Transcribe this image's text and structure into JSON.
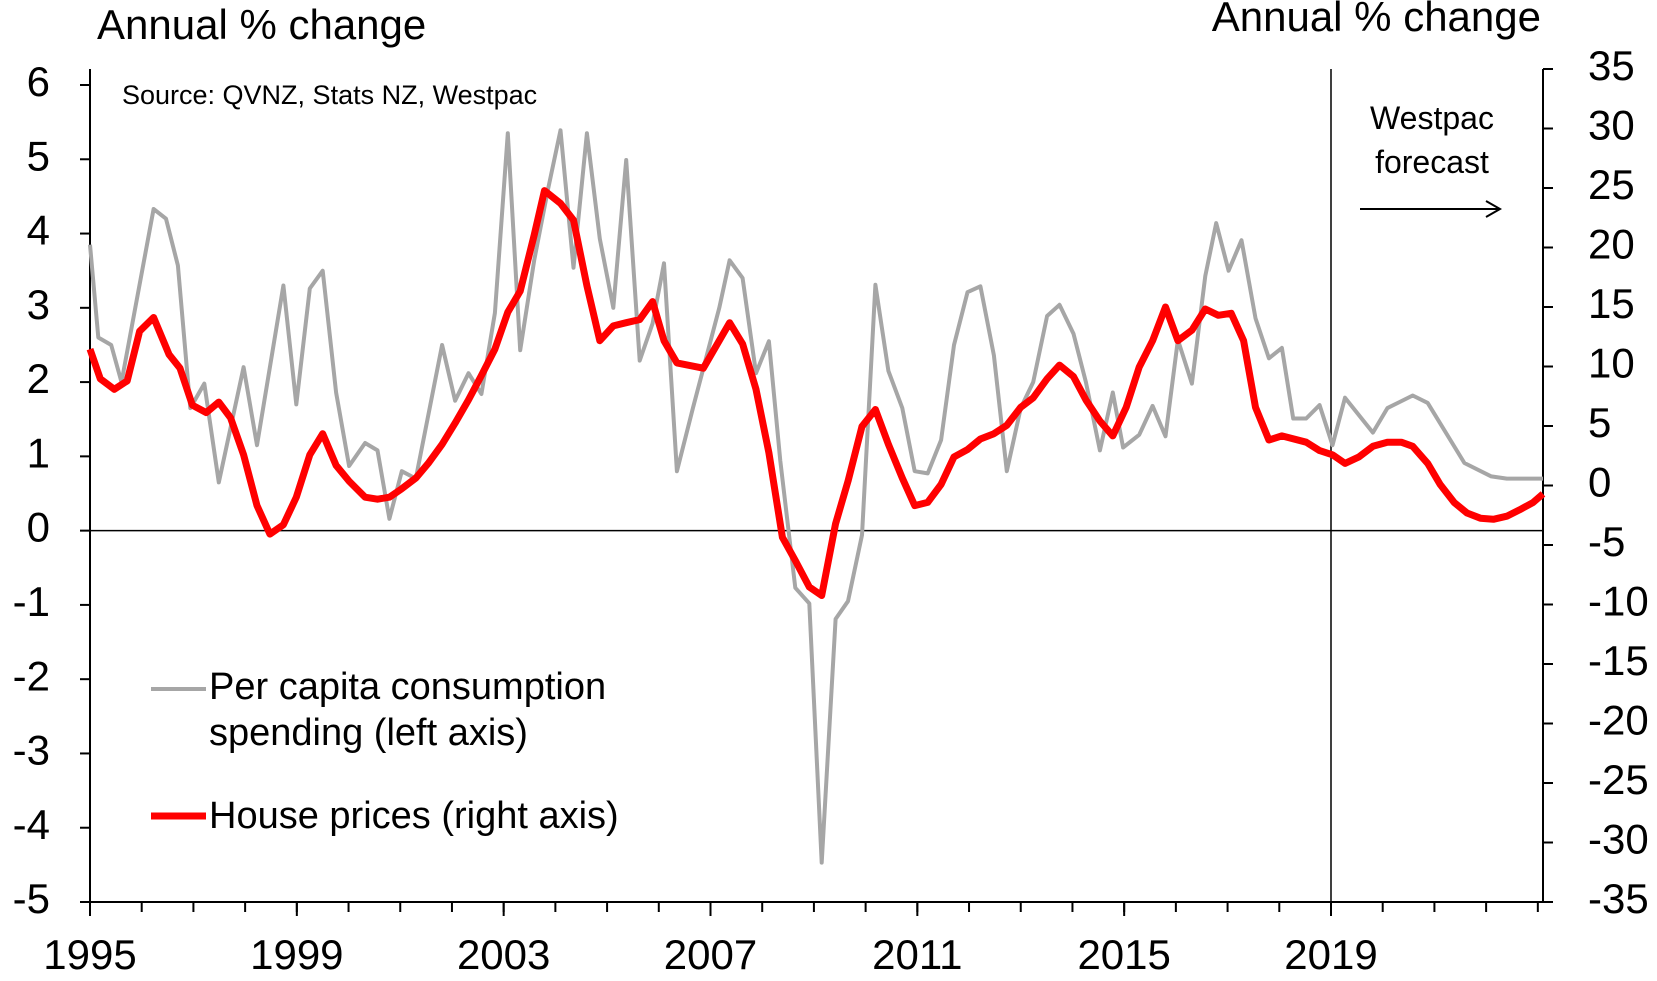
{
  "chart_data": {
    "type": "line",
    "y_label": "Annual % change",
    "y2_label": "Annual % change",
    "annotations": [
      "Source: QVNZ, Stats NZ, Westpac"
    ],
    "forecast": {
      "label": "Westpac forecast",
      "x": 2019
    },
    "xlim": [
      1995,
      2023.1
    ],
    "xticks": [
      1995,
      1999,
      2003,
      2007,
      2011,
      2015,
      2019
    ],
    "xminorticks": [
      1995,
      1996,
      1997,
      1998,
      1999,
      2000,
      2001,
      2002,
      2003,
      2004,
      2005,
      2006,
      2007,
      2008,
      2009,
      2010,
      2011,
      2012,
      2013,
      2014,
      2015,
      2016,
      2017,
      2018,
      2019,
      2020,
      2021,
      2022,
      2023
    ],
    "ylim": [
      -5,
      6
    ],
    "yticks": [
      -5,
      -4,
      -3,
      -2,
      -1,
      0,
      1,
      2,
      3,
      4,
      5,
      6
    ],
    "y2lim": [
      -35,
      35
    ],
    "y2ticks": [
      -35,
      -30,
      -25,
      -20,
      -15,
      -10,
      -5,
      0,
      5,
      10,
      15,
      20,
      25,
      30,
      35
    ],
    "series": [
      {
        "name": "Per capita consumption spending (left axis)",
        "color": "#a6a6a6",
        "axis": "y",
        "x": [
          1995.0,
          1995.16,
          1995.41,
          1995.61,
          1996.23,
          1996.47,
          1996.7,
          1996.94,
          1997.21,
          1997.49,
          1997.97,
          1998.23,
          1998.74,
          1998.99,
          1999.25,
          1999.5,
          1999.76,
          2000.01,
          2000.32,
          2000.56,
          2000.79,
          2001.03,
          2001.3,
          2001.81,
          2002.06,
          2002.32,
          2002.57,
          2002.83,
          2003.08,
          2003.32,
          2003.59,
          2003.85,
          2004.1,
          2004.35,
          2004.61,
          2004.86,
          2005.12,
          2005.37,
          2005.63,
          2005.88,
          2006.1,
          2006.35,
          2006.66,
          2007.17,
          2007.37,
          2007.62,
          2007.88,
          2008.13,
          2008.35,
          2008.64,
          2008.91,
          2009.15,
          2009.42,
          2009.66,
          2009.93,
          2010.19,
          2010.44,
          2010.71,
          2010.95,
          2011.2,
          2011.46,
          2011.71,
          2011.97,
          2012.22,
          2012.48,
          2012.73,
          2013.0,
          2013.24,
          2013.51,
          2013.75,
          2014.02,
          2014.26,
          2014.53,
          2014.78,
          2014.98,
          2015.29,
          2015.55,
          2015.8,
          2016.04,
          2016.31,
          2016.57,
          2016.78,
          2017.02,
          2017.27,
          2017.54,
          2017.8,
          2018.05,
          2018.27,
          2018.52,
          2018.78,
          2019.03,
          2019.27,
          2019.81,
          2020.09,
          2020.58,
          2020.87,
          2021.58,
          2022.1,
          2022.4,
          2023.1
        ],
        "values": [
          3.85,
          2.6,
          2.5,
          2.0,
          4.33,
          4.2,
          3.57,
          1.65,
          1.98,
          0.65,
          2.2,
          1.15,
          3.3,
          1.7,
          3.26,
          3.5,
          1.86,
          0.87,
          1.18,
          1.08,
          0.16,
          0.8,
          0.7,
          2.5,
          1.75,
          2.12,
          1.84,
          2.93,
          5.35,
          2.43,
          3.64,
          4.57,
          5.39,
          3.54,
          5.35,
          3.93,
          3.0,
          4.99,
          2.29,
          2.79,
          3.6,
          0.8,
          1.65,
          3.0,
          3.64,
          3.4,
          2.12,
          2.55,
          0.94,
          -0.77,
          -0.98,
          -4.47,
          -1.19,
          -0.95,
          -0.06,
          3.31,
          2.15,
          1.65,
          0.8,
          0.77,
          1.22,
          2.5,
          3.21,
          3.29,
          2.36,
          0.8,
          1.65,
          2.0,
          2.89,
          3.04,
          2.65,
          2.0,
          1.08,
          1.86,
          1.12,
          1.29,
          1.68,
          1.27,
          2.57,
          1.98,
          3.43,
          4.14,
          3.5,
          3.91,
          2.86,
          2.32,
          2.46,
          1.51,
          1.51,
          1.69,
          1.15,
          1.79,
          1.32,
          1.65,
          1.82,
          1.72,
          0.91,
          0.73,
          0.7,
          0.7
        ]
      },
      {
        "name": "House prices (right axis)",
        "color": "#ff0000",
        "axis": "y2",
        "x": [
          1995.0,
          1995.2,
          1995.47,
          1995.72,
          1995.96,
          1996.23,
          1996.53,
          1996.74,
          1996.98,
          1997.25,
          1997.49,
          1997.72,
          1997.97,
          1998.23,
          1998.48,
          1998.74,
          1998.99,
          1999.25,
          1999.5,
          1999.76,
          2000.01,
          2000.32,
          2000.56,
          2000.79,
          2001.03,
          2001.3,
          2001.54,
          2001.81,
          2002.06,
          2002.32,
          2002.57,
          2002.83,
          2003.08,
          2003.32,
          2003.59,
          2003.79,
          2004.1,
          2004.35,
          2004.61,
          2004.86,
          2005.12,
          2005.37,
          2005.63,
          2005.88,
          2006.1,
          2006.35,
          2006.86,
          2007.37,
          2007.62,
          2007.88,
          2008.13,
          2008.39,
          2008.64,
          2008.91,
          2009.15,
          2009.42,
          2009.66,
          2009.93,
          2010.19,
          2010.44,
          2010.71,
          2010.95,
          2011.2,
          2011.46,
          2011.71,
          2011.97,
          2012.22,
          2012.48,
          2012.73,
          2013.0,
          2013.24,
          2013.51,
          2013.75,
          2014.02,
          2014.26,
          2014.53,
          2014.78,
          2015.04,
          2015.29,
          2015.55,
          2015.8,
          2016.04,
          2016.31,
          2016.57,
          2016.82,
          2017.07,
          2017.31,
          2017.54,
          2017.8,
          2018.05,
          2018.52,
          2018.78,
          2019.03,
          2019.27,
          2019.54,
          2019.81,
          2020.09,
          2020.36,
          2020.58,
          2020.87,
          2021.11,
          2021.38,
          2021.63,
          2021.89,
          2022.14,
          2022.4,
          2022.65,
          2022.91,
          2023.1
        ],
        "values": [
          11.46,
          8.97,
          8.08,
          8.79,
          12.96,
          14.12,
          11.0,
          9.86,
          6.75,
          6.13,
          7.01,
          5.68,
          2.58,
          -1.69,
          -4.08,
          -3.29,
          -0.98,
          2.58,
          4.35,
          1.69,
          0.36,
          -0.98,
          -1.15,
          -0.98,
          -0.27,
          0.62,
          1.86,
          3.46,
          5.24,
          7.19,
          9.24,
          11.46,
          14.56,
          16.34,
          21.05,
          24.78,
          23.71,
          22.29,
          16.79,
          12.17,
          13.41,
          13.68,
          13.94,
          15.45,
          12.17,
          10.3,
          9.86,
          13.68,
          11.9,
          8.08,
          2.75,
          -4.35,
          -6.31,
          -8.53,
          -9.24,
          -3.2,
          0.36,
          4.97,
          6.39,
          3.46,
          0.62,
          -1.69,
          -1.42,
          0.09,
          2.4,
          3.02,
          3.91,
          4.35,
          5.06,
          6.57,
          7.37,
          8.97,
          10.12,
          9.15,
          7.19,
          5.42,
          4.17,
          6.57,
          9.95,
          12.17,
          15.0,
          12.17,
          13.05,
          14.83,
          14.3,
          14.47,
          12.17,
          6.57,
          3.82,
          4.17,
          3.64,
          2.93,
          2.58,
          1.86,
          2.4,
          3.29,
          3.64,
          3.64,
          3.29,
          1.86,
          0.09,
          -1.42,
          -2.31,
          -2.75,
          -2.84,
          -2.58,
          -2.04,
          -1.42,
          -0.71
        ]
      }
    ]
  }
}
